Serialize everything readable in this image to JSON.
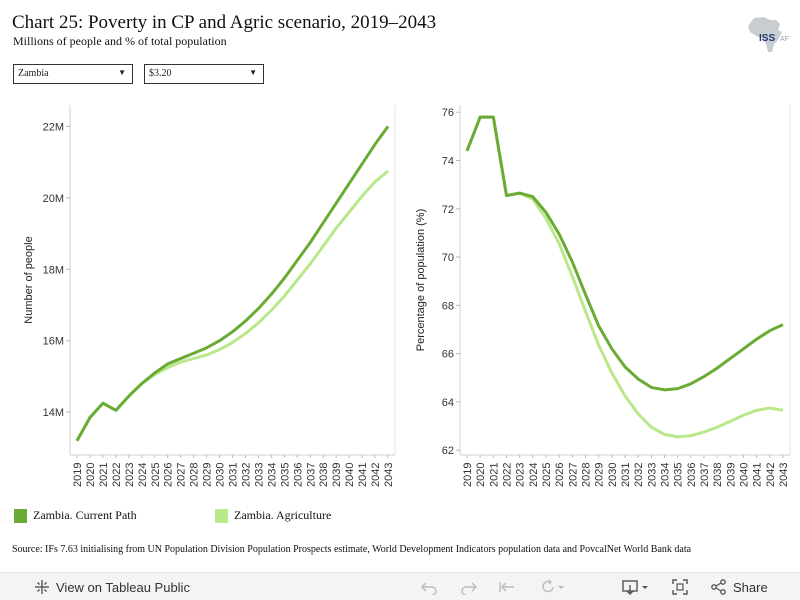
{
  "title": "Chart 25: Poverty in CP and Agric scenario, 2019–2043",
  "subtitle": "Millions of people and % of total population",
  "logo": {
    "text": "ISS",
    "suffix": "AF"
  },
  "filters": {
    "country": "Zambia",
    "threshold": "$3.20"
  },
  "legend": [
    {
      "label": "Zambia. Current Path",
      "color": "#6aab35"
    },
    {
      "label": "Zambia. Agriculture",
      "color": "#b8e88a"
    }
  ],
  "source": "Source: IFs 7.63 initialising from UN Population Division Population Prospects estimate, World Development Indicators population data and PovcalNet World Bank data",
  "toolbar": {
    "view_label": "View on Tableau Public",
    "share_label": "Share"
  },
  "chart_data": [
    {
      "type": "line",
      "ylabel": "Number of people",
      "y_tick_labels": [
        "14M",
        "16M",
        "18M",
        "20M",
        "22M"
      ],
      "y_ticks": [
        14,
        16,
        18,
        20,
        22
      ],
      "ylim": [
        12.8,
        22.6
      ],
      "x": [
        "2019",
        "2020",
        "2021",
        "2022",
        "2023",
        "2024",
        "2025",
        "2026",
        "2027",
        "2028",
        "2029",
        "2030",
        "2031",
        "2032",
        "2033",
        "2034",
        "2035",
        "2036",
        "2037",
        "2038",
        "2039",
        "2040",
        "2041",
        "2042",
        "2043"
      ],
      "grid": false,
      "series": [
        {
          "name": "Zambia. Current Path",
          "color": "#6aab35",
          "values": [
            13.2,
            13.85,
            14.25,
            14.05,
            14.45,
            14.8,
            15.1,
            15.35,
            15.5,
            15.65,
            15.8,
            16.0,
            16.25,
            16.55,
            16.9,
            17.3,
            17.75,
            18.25,
            18.75,
            19.3,
            19.85,
            20.4,
            20.95,
            21.5,
            22.0
          ]
        },
        {
          "name": "Zambia. Agriculture",
          "color": "#b8e88a",
          "values": [
            13.2,
            13.85,
            14.25,
            14.05,
            14.45,
            14.8,
            15.05,
            15.25,
            15.4,
            15.5,
            15.6,
            15.75,
            15.95,
            16.2,
            16.5,
            16.85,
            17.25,
            17.7,
            18.15,
            18.65,
            19.15,
            19.6,
            20.05,
            20.45,
            20.75
          ]
        }
      ]
    },
    {
      "type": "line",
      "ylabel": "Percentage of population (%)",
      "y_tick_labels": [
        "62",
        "64",
        "66",
        "68",
        "70",
        "72",
        "74",
        "76"
      ],
      "y_ticks": [
        62,
        64,
        66,
        68,
        70,
        72,
        74,
        76
      ],
      "ylim": [
        61.8,
        76.3
      ],
      "x": [
        "2019",
        "2020",
        "2021",
        "2022",
        "2023",
        "2024",
        "2025",
        "2026",
        "2027",
        "2028",
        "2029",
        "2030",
        "2031",
        "2032",
        "2033",
        "2034",
        "2035",
        "2036",
        "2037",
        "2038",
        "2039",
        "2040",
        "2041",
        "2042",
        "2043"
      ],
      "grid": false,
      "series": [
        {
          "name": "Zambia. Current Path",
          "color": "#6aab35",
          "values": [
            74.4,
            75.8,
            75.8,
            72.55,
            72.65,
            72.5,
            71.85,
            70.95,
            69.8,
            68.45,
            67.15,
            66.2,
            65.45,
            64.95,
            64.6,
            64.5,
            64.55,
            64.75,
            65.05,
            65.4,
            65.8,
            66.2,
            66.6,
            66.95,
            67.2
          ]
        },
        {
          "name": "Zambia. Agriculture",
          "color": "#b8e88a",
          "values": [
            74.4,
            75.8,
            75.8,
            72.55,
            72.65,
            72.4,
            71.6,
            70.55,
            69.2,
            67.75,
            66.35,
            65.2,
            64.25,
            63.5,
            62.95,
            62.65,
            62.55,
            62.6,
            62.75,
            62.95,
            63.2,
            63.45,
            63.65,
            63.75,
            63.65
          ]
        }
      ]
    }
  ]
}
